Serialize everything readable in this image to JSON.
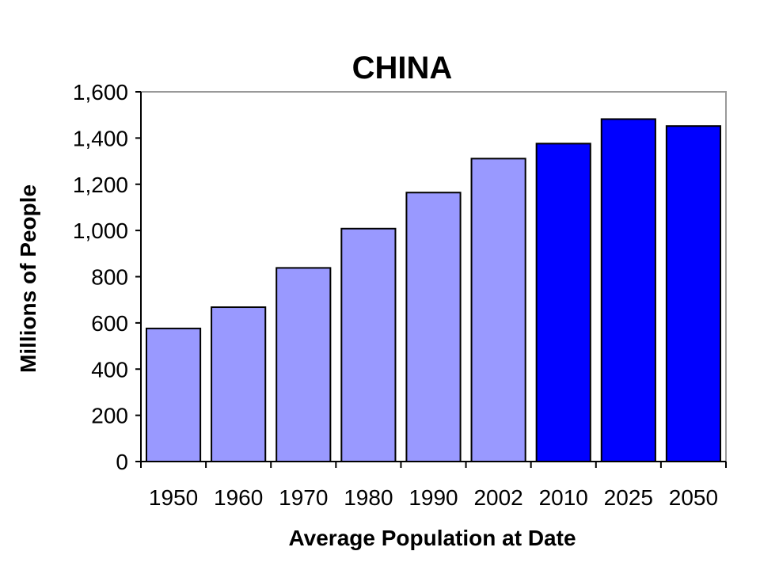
{
  "chart_data": {
    "type": "bar",
    "title": "CHINA",
    "xlabel": "Average Population at Date",
    "ylabel": "Millions of People",
    "categories": [
      "1950",
      "1960",
      "1970",
      "1980",
      "1990",
      "2002",
      "2010",
      "2025",
      "2050"
    ],
    "values": [
      576,
      668,
      838,
      1008,
      1164,
      1311,
      1376,
      1482,
      1452
    ],
    "ylim": [
      0,
      1600
    ],
    "yticks": [
      0,
      200,
      400,
      600,
      800,
      1000,
      1200,
      1400,
      1600
    ],
    "ytick_labels": [
      "0",
      "200",
      "400",
      "600",
      "800",
      "1,000",
      "1,200",
      "1,400",
      "1,600"
    ],
    "grid": false,
    "legend": "none",
    "colors": {
      "observed": "#9999FF",
      "projected": "#0000FF",
      "bar_outline": "#000000",
      "plot_border": "#999999"
    },
    "projected_from_category": "2010"
  }
}
